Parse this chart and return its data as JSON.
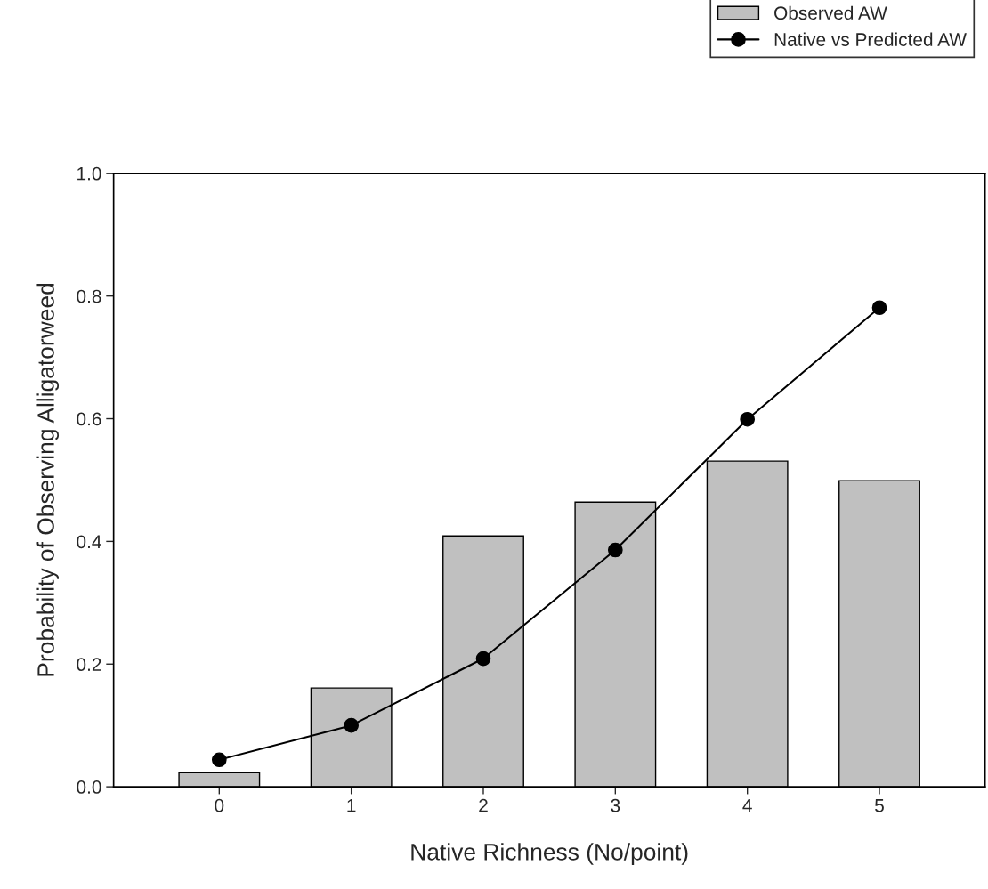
{
  "chart_data": {
    "type": "bar",
    "xlabel": "Native Richness (No/point)",
    "ylabel": "Probability of Observing Alligatorweed",
    "x": [
      0,
      1,
      2,
      3,
      4,
      5
    ],
    "series": [
      {
        "name": "Observed AW",
        "color": "#c0c0c0",
        "values": [
          0.023,
          0.161,
          0.409,
          0.464,
          0.531,
          0.499
        ]
      },
      {
        "name": "Native vs Predicted AW",
        "type": "line",
        "color": "#000000",
        "marker": "circle",
        "line_style": "solid",
        "values": [
          0.044,
          0.1,
          0.209,
          0.386,
          0.599,
          0.781
        ]
      }
    ],
    "xlim": [
      -0.8,
      5.8
    ],
    "xticks": [
      0,
      1,
      2,
      3,
      4,
      5
    ],
    "ylim": [
      0,
      1.0
    ],
    "yticks": [
      {
        "value": 0,
        "label": "0.0"
      },
      0.2,
      0.4,
      0.6,
      0.8,
      {
        "value": 1.0,
        "label": "1.0"
      }
    ],
    "grid": false,
    "legend": "top right"
  }
}
